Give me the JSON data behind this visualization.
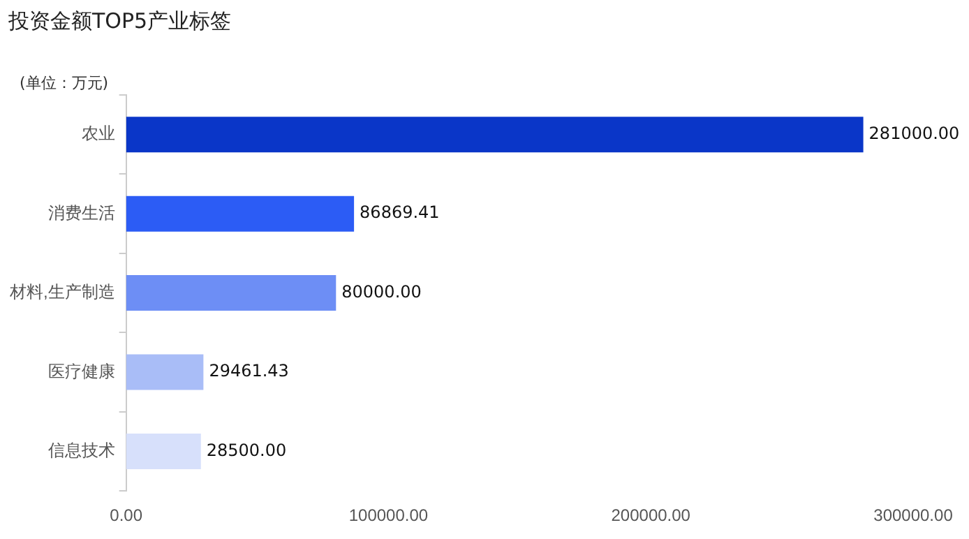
{
  "chart_data": {
    "type": "bar",
    "orientation": "horizontal",
    "title": "投资金额TOP5产业标签",
    "annotations": [
      "(单位：万元)"
    ],
    "categories": [
      "农业",
      "消费生活",
      "材料,生产制造",
      "医疗健康",
      "信息技术"
    ],
    "values": [
      281000,
      86869.41,
      80000,
      29461.43,
      28500
    ],
    "colors": [
      "#0a36c8",
      "#2c5cf5",
      "#6d8ef5",
      "#a9bdf7",
      "#d7e0fb"
    ],
    "value_labels": [
      "281000.00",
      "86869.41",
      "80000.00",
      "29461.43",
      "28500.00"
    ],
    "xlim": [
      0,
      300000
    ],
    "xticks": [
      {
        "value": 0,
        "label": "0.00"
      },
      {
        "value": 100000,
        "label": "100000.00"
      },
      {
        "value": 200000,
        "label": "200000.00"
      },
      {
        "value": 300000,
        "label": "300000.00"
      }
    ],
    "grid": false,
    "legend": false
  }
}
